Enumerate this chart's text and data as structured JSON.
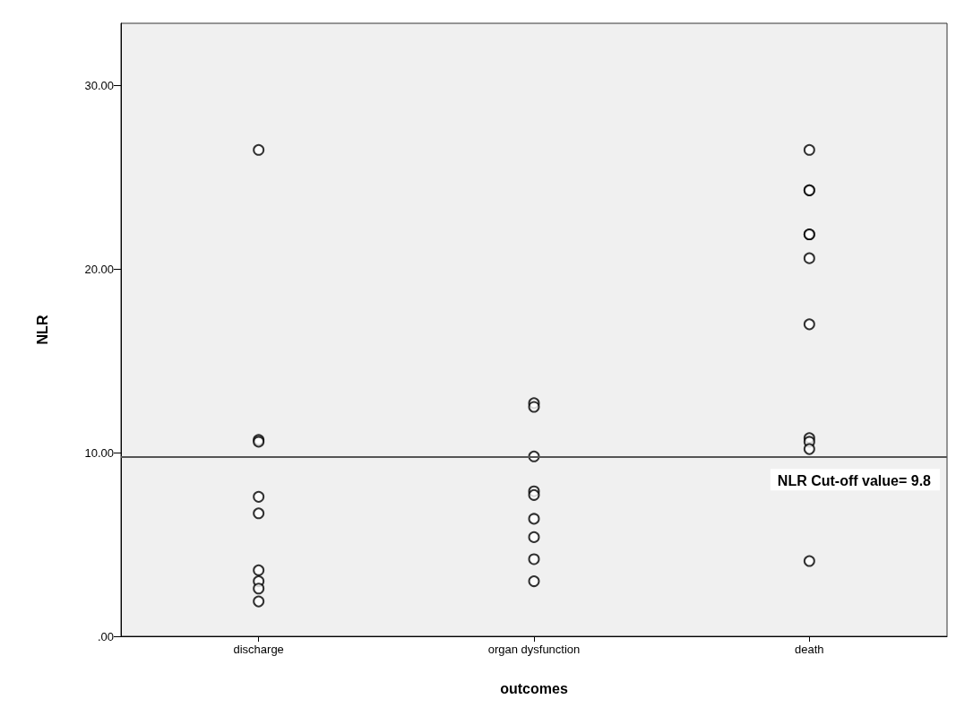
{
  "chart_data": {
    "type": "scatter",
    "xlabel": "outcomes",
    "ylabel": "NLR",
    "categories": [
      "discharge",
      "organ dysfunction",
      "death"
    ],
    "series": [
      {
        "color": "#000000",
        "x": [
          "discharge",
          "discharge",
          "discharge",
          "discharge",
          "discharge",
          "discharge",
          "discharge",
          "discharge",
          "discharge",
          "organ dysfunction",
          "organ dysfunction",
          "organ dysfunction",
          "organ dysfunction",
          "organ dysfunction",
          "organ dysfunction",
          "organ dysfunction",
          "organ dysfunction",
          "organ dysfunction",
          "death",
          "death",
          "death",
          "death",
          "death",
          "death",
          "death",
          "death",
          "death",
          "death",
          "death"
        ],
        "values": [
          26.5,
          10.7,
          10.6,
          7.6,
          6.7,
          3.6,
          3.0,
          2.6,
          1.9,
          12.7,
          12.5,
          9.8,
          7.9,
          7.7,
          6.4,
          5.4,
          4.2,
          3.0,
          26.5,
          24.3,
          24.3,
          21.9,
          21.9,
          20.6,
          17.0,
          10.8,
          10.6,
          10.2,
          4.1
        ]
      }
    ],
    "ylim": [
      0,
      33.4
    ],
    "yticks": [
      {
        "value": 0,
        "label": ".00"
      },
      {
        "value": 10,
        "label": "10.00"
      },
      {
        "value": 20,
        "label": "20.00"
      },
      {
        "value": 30,
        "label": "30.00"
      }
    ],
    "ref_lines": [
      {
        "axis": "y",
        "value": 9.8,
        "label": "NLR Cut-off value= 9.8",
        "color": "#555555"
      }
    ],
    "marker": "circle",
    "grid": false
  }
}
